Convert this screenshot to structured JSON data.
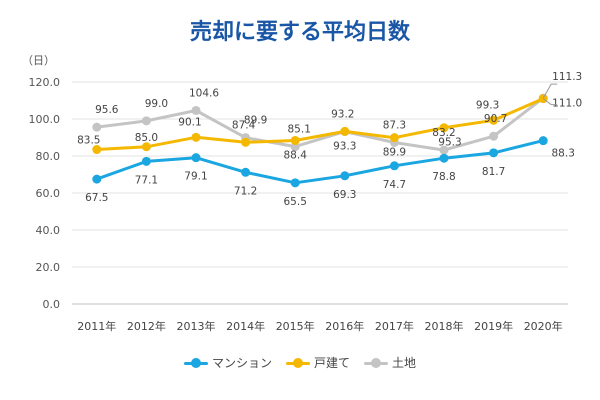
{
  "chart_data": {
    "type": "line",
    "title": "売却に要する平均日数",
    "ylabel": "（日）",
    "xlabel": "",
    "ylim": [
      0,
      120
    ],
    "yticks": [
      "0.0",
      "20.0",
      "40.0",
      "60.0",
      "80.0",
      "100.0",
      "120.0"
    ],
    "categories": [
      "2011年",
      "2012年",
      "2013年",
      "2014年",
      "2015年",
      "2016年",
      "2017年",
      "2018年",
      "2019年",
      "2020年"
    ],
    "grid": true,
    "legend_position": "bottom",
    "series": [
      {
        "name": "マンション",
        "color": "#1aa6e0",
        "values": [
          67.5,
          77.1,
          79.1,
          71.2,
          65.5,
          69.3,
          74.7,
          78.8,
          81.7,
          88.3
        ],
        "labels": [
          "67.5",
          "77.1",
          "79.1",
          "71.2",
          "65.5",
          "69.3",
          "74.7",
          "78.8",
          "81.7",
          "88.3"
        ]
      },
      {
        "name": "戸建て",
        "color": "#f5b800",
        "values": [
          83.5,
          85.0,
          90.1,
          87.4,
          88.4,
          93.3,
          89.9,
          95.3,
          99.3,
          111.0
        ],
        "labels": [
          "83.5",
          "85.0",
          "90.1",
          "87.4",
          "88.4",
          "93.3",
          "89.9",
          "95.3",
          "99.3",
          "111.0"
        ]
      },
      {
        "name": "土地",
        "color": "#c4c4c4",
        "values": [
          95.6,
          99.0,
          104.6,
          89.9,
          85.1,
          93.2,
          87.3,
          83.2,
          90.7,
          111.3
        ],
        "labels": [
          "95.6",
          "99.0",
          "104.6",
          "89.9",
          "85.1",
          "93.2",
          "87.3",
          "83.2",
          "90.7",
          "111.3"
        ]
      }
    ]
  }
}
